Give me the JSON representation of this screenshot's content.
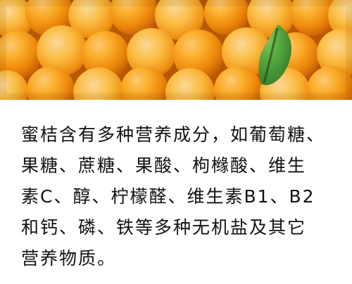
{
  "image": {
    "subject": "oranges-photo",
    "colors": {
      "orange_light": "#ffb22e",
      "orange_mid": "#f08a0c",
      "orange_dark": "#c45f05",
      "leaf": "#2f6f2a",
      "leaf_highlight": "#4aa03a",
      "background": "#ffffff"
    }
  },
  "content": {
    "lines": [
      "蜜桔含有多种营养成分，如葡萄糖、",
      "果糖、蔗糖、果酸、枸橼酸、维生",
      "素C、醇、柠檬醛、维生素B1、B2",
      "和钙、磷、铁等多种无机盐及其它",
      "营养物质。"
    ]
  }
}
